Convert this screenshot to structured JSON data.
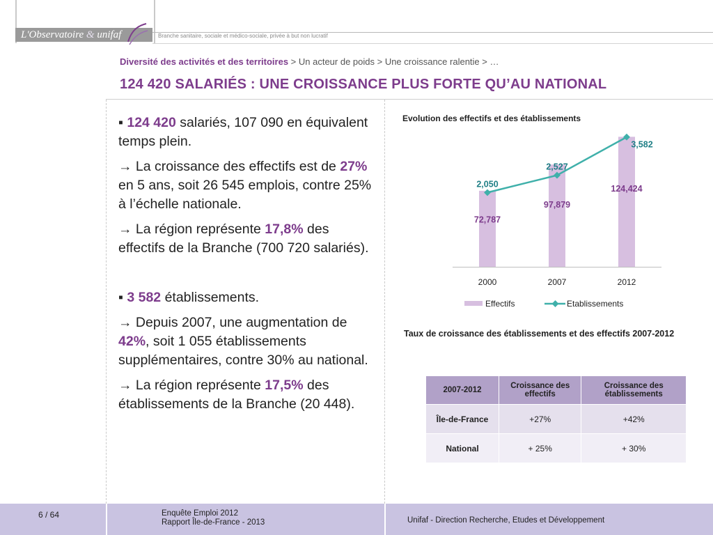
{
  "header": {
    "logo_main": "L'Observatoire",
    "logo_amp": "&",
    "logo_brand": "unifaf",
    "tagline": "Branche sanitaire, sociale et médico-sociale, privée à but non lucratif"
  },
  "breadcrumb": {
    "main": "Diversité des activités et des territoires",
    "rest": " > Un acteur de poids > Une croissance ralentie > …"
  },
  "page_title": "124 420 SALARIÉS : UNE CROISSANCE PLUS FORTE QU’AU NATIONAL",
  "left": {
    "bullet": "▪",
    "p1_num": "124 420",
    "p1_rest": " salariés, 107 090 en équivalent temps plein.",
    "p2_pre": "→ La croissance des effectifs est de ",
    "p2_num": "27%",
    "p2_post": " en 5 ans, soit 26 545 emplois, contre 25% à l’échelle nationale.",
    "p3_pre": "→ La région représente ",
    "p3_num": "17,8%",
    "p3_post": " des effectifs de la Branche (700 720 salariés).",
    "p4_num": "3 582",
    "p4_rest": " établissements.",
    "p5_pre": "→ Depuis 2007, une augmentation de ",
    "p5_num": "42%",
    "p5_post": ", soit 1 055 établissements supplémentaires, contre 30% au national.",
    "p6_pre": "→ La région représente ",
    "p6_num": "17,5%",
    "p6_post": " des établissements de la Branche (20 448)."
  },
  "chart_data": {
    "type": "bar",
    "title": "Evolution des effectifs et des établissements",
    "categories": [
      "2000",
      "2007",
      "2012"
    ],
    "series": [
      {
        "name": "Effectifs",
        "kind": "bar",
        "values": [
          72787,
          97879,
          124424
        ],
        "labels": [
          "72,787",
          "97,879",
          "124,424"
        ],
        "color": "#d7bfe0",
        "label_color": "#7d3c8c"
      },
      {
        "name": "Etablissements",
        "kind": "line",
        "values": [
          2050,
          2527,
          3582
        ],
        "labels": [
          "2,050",
          "2,527",
          "3,582"
        ],
        "color": "#3fb0aa",
        "label_color": "#1f7f86"
      }
    ],
    "ylim_bars": [
      0,
      130000
    ],
    "ylim_line": [
      0,
      3750
    ],
    "legend": "bottom",
    "grid": false
  },
  "table": {
    "title": "Taux de croissance des établissements et  des effectifs 2007-2012",
    "headers": [
      "2007-2012",
      "Croissance des effectifs",
      "Croissance des établissements"
    ],
    "rows": [
      [
        "Île-de-France",
        "+27%",
        "+42%"
      ],
      [
        "National",
        "+ 25%",
        "+ 30%"
      ]
    ]
  },
  "footer": {
    "page": "6 / 64",
    "line1": "Enquête Emploi 2012",
    "line2": "Rapport Île-de-France - 2013",
    "right": "Unifaf - Direction Recherche, Etudes et Développement"
  },
  "colors": {
    "accent": "#7d3c8c",
    "footer_band": "#c9c3e1",
    "table_header": "#b1a1c8"
  }
}
